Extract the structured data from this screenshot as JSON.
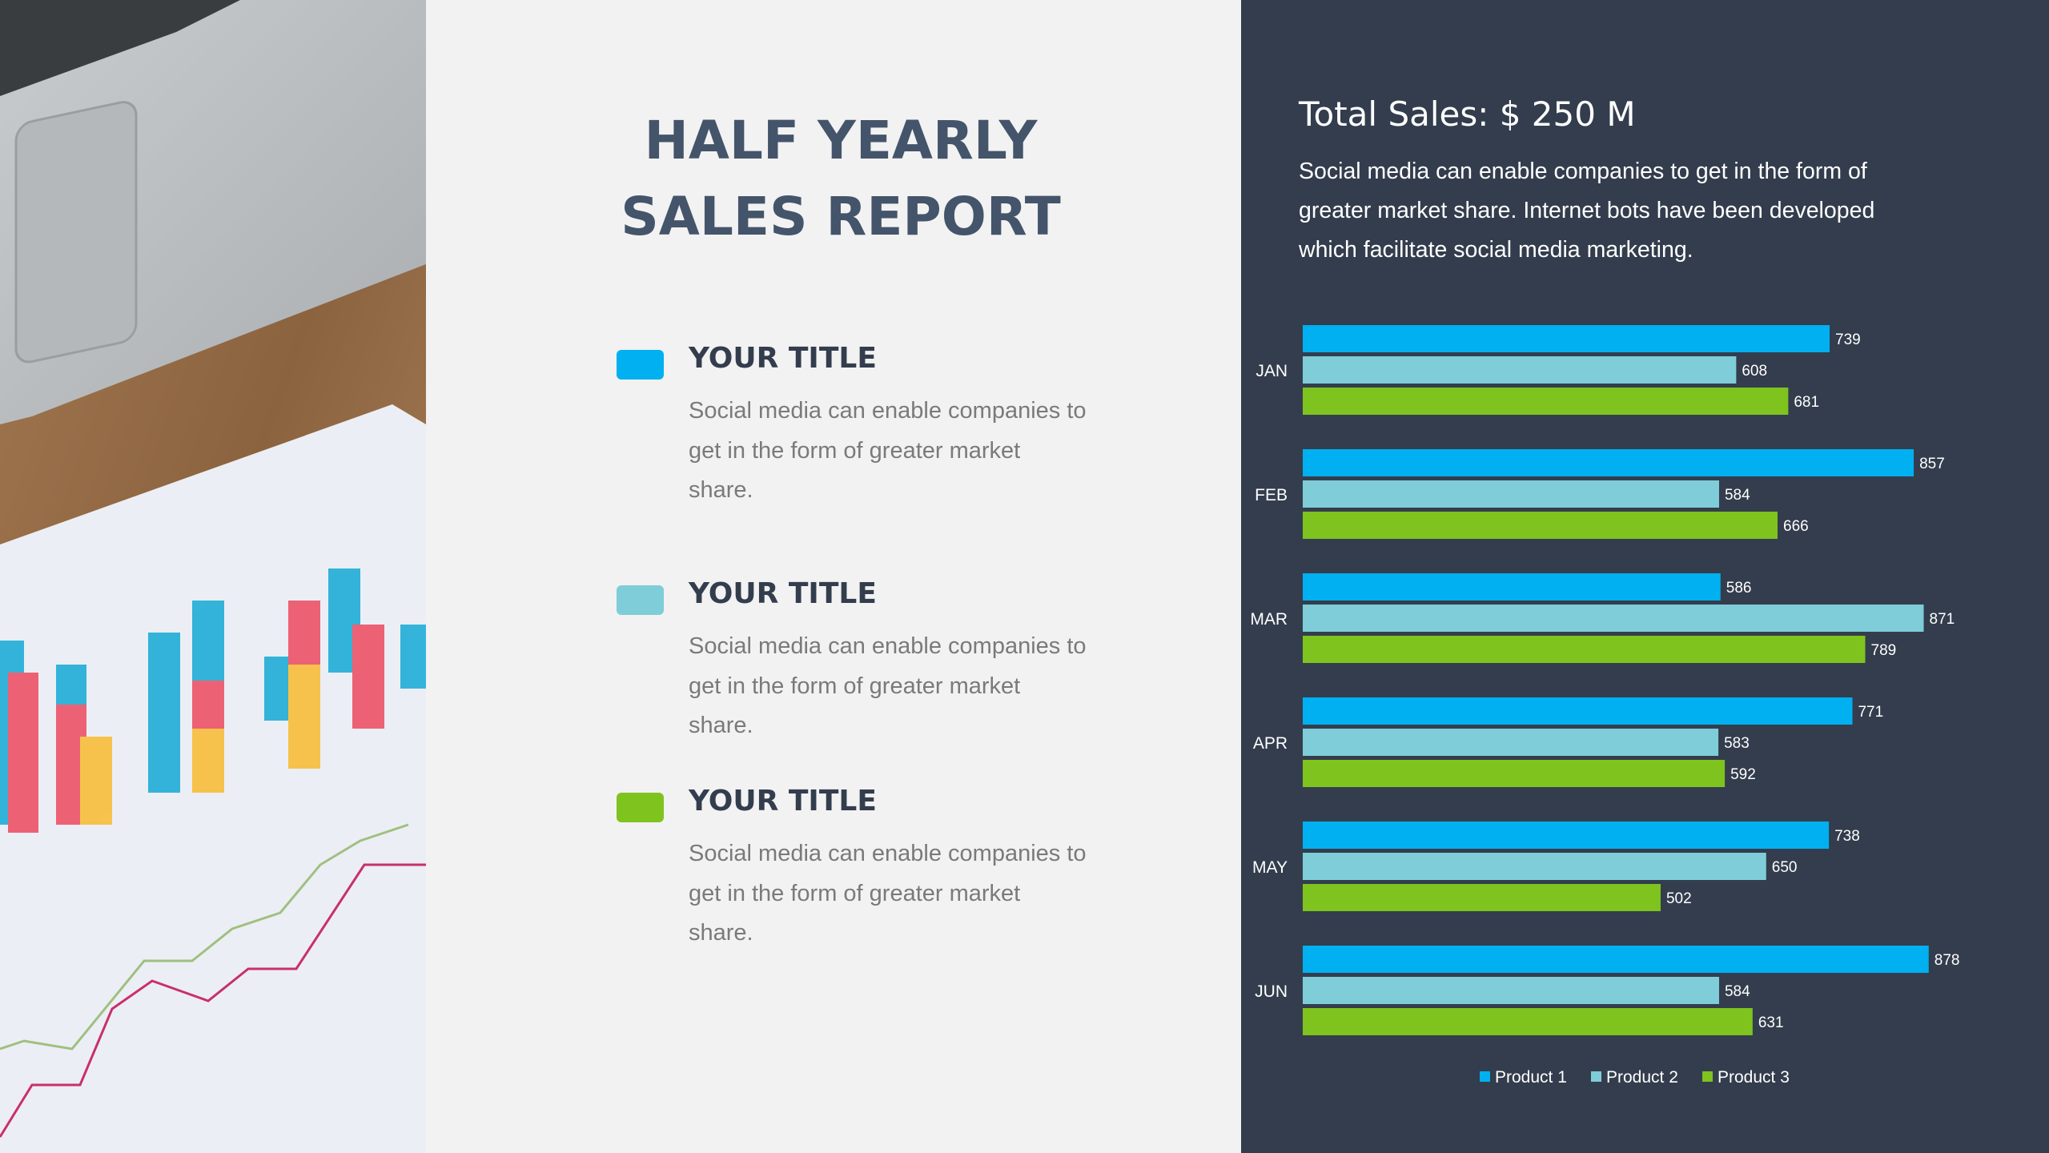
{
  "title": {
    "line1": "HALF YEARLY",
    "line2": "SALES REPORT"
  },
  "items": [
    {
      "title": "YOUR TITLE",
      "body": "Social media can enable companies to get in the form of greater market share.",
      "color": "#00b0f0"
    },
    {
      "title": "YOUR TITLE",
      "body": "Social media can enable companies to get in the form of greater market share.",
      "color": "#7fcdd8"
    },
    {
      "title": "YOUR TITLE",
      "body": "Social media can enable companies to get in the form of greater market share.",
      "color": "#7fc31e"
    }
  ],
  "summary": {
    "total": "Total Sales: $ 250 M",
    "text": "Social media can enable companies to get in the form of greater market share. Internet bots have been developed which facilitate social media marketing."
  },
  "photo": {
    "icon": "laptop-and-chart-paper-photo"
  },
  "chart_data": {
    "type": "bar",
    "orientation": "horizontal",
    "categories": [
      "JAN",
      "FEB",
      "MAR",
      "APR",
      "MAY",
      "JUN"
    ],
    "series": [
      {
        "name": "Product 1",
        "color": "#00b0f0",
        "values": [
          739,
          857,
          586,
          771,
          738,
          878
        ]
      },
      {
        "name": "Product 2",
        "color": "#7fcdd8",
        "values": [
          608,
          584,
          871,
          583,
          650,
          584
        ]
      },
      {
        "name": "Product 3",
        "color": "#7fc31e",
        "values": [
          681,
          666,
          789,
          592,
          502,
          631
        ]
      }
    ],
    "data_labels": true,
    "legend": "bottom",
    "grid": false
  }
}
